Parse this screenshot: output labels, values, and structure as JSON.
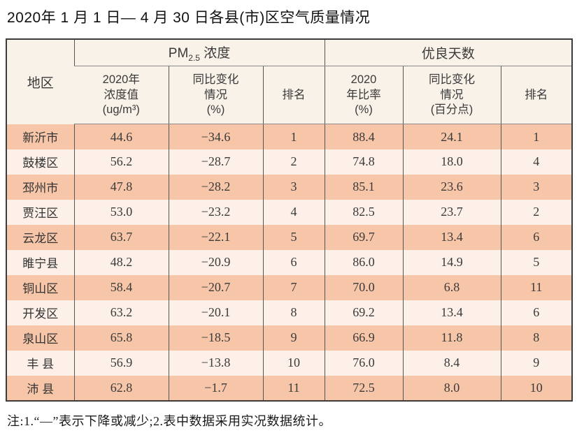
{
  "title": "2020年 1 月 1 日— 4 月 30 日各县(市)区空气质量情况",
  "colors": {
    "row_odd_bg": "#f7c6a8",
    "row_even_bg": "#fcf0e8",
    "header_bg": "#f8f2e8",
    "outer_border": "#3c3c3c",
    "inner_border": "#555555"
  },
  "table": {
    "headers": {
      "region": "地区",
      "pm_group_prefix": "PM",
      "pm_group_sub": "2.5",
      "pm_group_suffix": " 浓度",
      "good_group": "优良天数",
      "pm_value": "2020年\n浓度值\n(ug/m³)",
      "pm_change": "同比变化\n情况\n(%)",
      "pm_rank": "排名",
      "good_ratio": "2020\n年比率\n(%)",
      "good_change": "同比变化\n情况\n(百分点)",
      "good_rank": "排名"
    },
    "rows": [
      {
        "region": "新沂市",
        "pm_value": "44.6",
        "pm_change": "−34.6",
        "pm_rank": "1",
        "good_ratio": "88.4",
        "good_change": "24.1",
        "good_rank": "1"
      },
      {
        "region": "鼓楼区",
        "pm_value": "56.2",
        "pm_change": "−28.7",
        "pm_rank": "2",
        "good_ratio": "74.8",
        "good_change": "18.0",
        "good_rank": "4"
      },
      {
        "region": "邳州市",
        "pm_value": "47.8",
        "pm_change": "−28.2",
        "pm_rank": "3",
        "good_ratio": "85.1",
        "good_change": "23.6",
        "good_rank": "3"
      },
      {
        "region": "贾汪区",
        "pm_value": "53.0",
        "pm_change": "−23.2",
        "pm_rank": "4",
        "good_ratio": "82.5",
        "good_change": "23.7",
        "good_rank": "2"
      },
      {
        "region": "云龙区",
        "pm_value": "63.7",
        "pm_change": "−22.1",
        "pm_rank": "5",
        "good_ratio": "69.7",
        "good_change": "13.4",
        "good_rank": "6"
      },
      {
        "region": "睢宁县",
        "pm_value": "48.2",
        "pm_change": "−20.9",
        "pm_rank": "6",
        "good_ratio": "86.0",
        "good_change": "14.9",
        "good_rank": "5"
      },
      {
        "region": "铜山区",
        "pm_value": "58.4",
        "pm_change": "−20.7",
        "pm_rank": "7",
        "good_ratio": "70.0",
        "good_change": "6.8",
        "good_rank": "11"
      },
      {
        "region": "开发区",
        "pm_value": "63.2",
        "pm_change": "−20.1",
        "pm_rank": "8",
        "good_ratio": "69.2",
        "good_change": "13.4",
        "good_rank": "6"
      },
      {
        "region": "泉山区",
        "pm_value": "65.8",
        "pm_change": "−18.5",
        "pm_rank": "9",
        "good_ratio": "66.9",
        "good_change": "11.8",
        "good_rank": "8"
      },
      {
        "region": "丰 县",
        "pm_value": "56.9",
        "pm_change": "−13.8",
        "pm_rank": "10",
        "good_ratio": "76.0",
        "good_change": "8.4",
        "good_rank": "9"
      },
      {
        "region": "沛 县",
        "pm_value": "62.8",
        "pm_change": "−1.7",
        "pm_rank": "11",
        "good_ratio": "72.5",
        "good_change": "8.0",
        "good_rank": "10"
      }
    ]
  },
  "footnote": "注:1.“—”表示下降或减少;2.表中数据采用实况数据统计。"
}
